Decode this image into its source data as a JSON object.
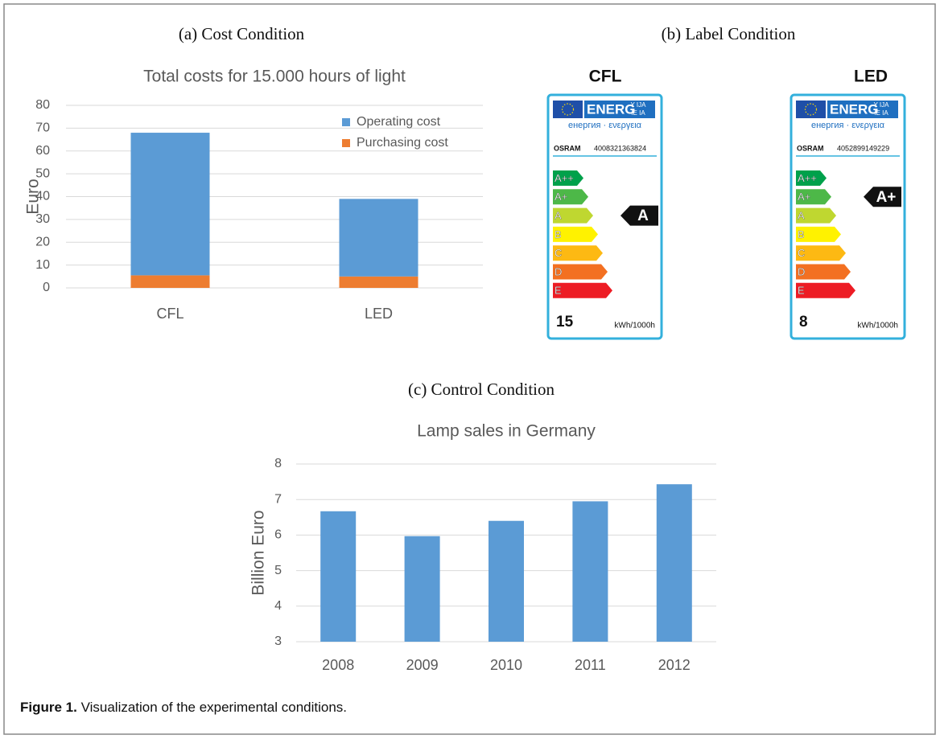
{
  "panel_titles": [
    "(a)  Cost Condition",
    "(b)  Label Condition",
    "(c)  Control Condition"
  ],
  "chart_data": [
    {
      "type": "stacked_bar",
      "title": "Total costs for 15.000 hours of light",
      "y_label": "Euro",
      "categories": [
        "CFL",
        "LED"
      ],
      "series": [
        {
          "name": "Purchasing cost",
          "color": "#ed7d31",
          "values": [
            5.5,
            5
          ]
        },
        {
          "name": "Operating cost",
          "color": "#5b9bd5",
          "values": [
            62.5,
            34
          ]
        }
      ],
      "ylim": [
        0,
        80
      ],
      "yticks": [
        0,
        10,
        20,
        30,
        40,
        50,
        60,
        70,
        80
      ],
      "grid": true,
      "legend": "upper-right"
    },
    {
      "type": "bar",
      "title": "Lamp sales in Germany",
      "y_label": "Billion Euro",
      "categories": [
        "2008",
        "2009",
        "2010",
        "2011",
        "2012"
      ],
      "values": [
        6.67,
        5.97,
        6.4,
        6.95,
        7.43
      ],
      "color": "#5b9bd5",
      "ylim": [
        3,
        8
      ],
      "yticks": [
        3,
        4,
        5,
        6,
        7,
        8
      ],
      "grid": true
    }
  ],
  "energy_label_common": {
    "word": "ENERG",
    "suffix_top": "Y IJA",
    "suffix_bottom": "IE IA",
    "languages": "енергия · ενεργεια",
    "classes": [
      "A++",
      "A+",
      "A",
      "B",
      "C",
      "D",
      "E"
    ],
    "class_colors": [
      "#00a14b",
      "#4db848",
      "#bfd730",
      "#fff200",
      "#fdb913",
      "#f37021",
      "#ed1c24"
    ],
    "unit": "kWh/1000h"
  },
  "energy_labels": [
    {
      "lamp": "CFL",
      "brand": "OSRAM",
      "code": "4008321363824",
      "rating": "A",
      "consumption": 15
    },
    {
      "lamp": "LED",
      "brand": "OSRAM",
      "code": "4052899149229",
      "rating": "A+",
      "consumption": 8
    }
  ],
  "caption": {
    "label": "Figure 1.",
    "text": " Visualization of the experimental conditions."
  }
}
